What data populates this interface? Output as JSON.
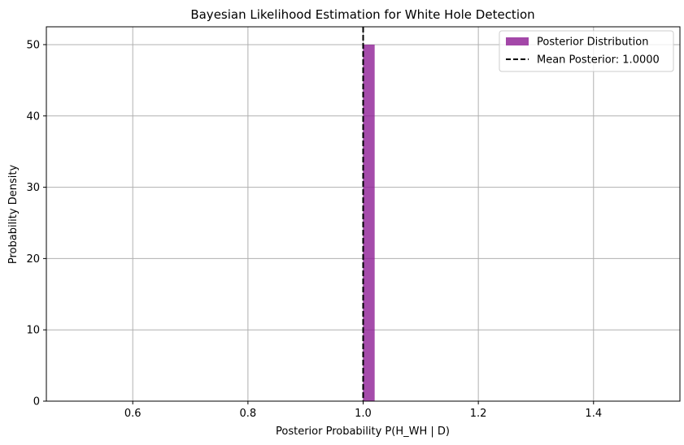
{
  "chart_data": {
    "type": "bar",
    "title": "Bayesian Likelihood Estimation for White Hole Detection",
    "xlabel": "Posterior Probability P(H_WH | D)",
    "ylabel": "Probability Density",
    "xlim": [
      0.45,
      1.55
    ],
    "ylim": [
      0,
      52.5
    ],
    "xticks": [
      0.6,
      0.8,
      1.0,
      1.2,
      1.4
    ],
    "xtick_labels": [
      "0.6",
      "0.8",
      "1.0",
      "1.2",
      "1.4"
    ],
    "yticks": [
      0,
      10,
      20,
      30,
      40,
      50
    ],
    "ytick_labels": [
      "0",
      "10",
      "20",
      "30",
      "40",
      "50"
    ],
    "grid": true,
    "legend_position": "top-right",
    "bins": [
      {
        "x_start": 1.0,
        "x_end": 1.02,
        "value": 50
      }
    ],
    "bar_color": "#8e1f96",
    "bar_opacity": 0.8,
    "mean_line": {
      "x": 1.0,
      "color": "#000000",
      "style": "dashed"
    },
    "legend": [
      {
        "label": "Posterior Distribution",
        "kind": "patch",
        "color": "#a347a8"
      },
      {
        "label": "Mean Posterior: 1.0000",
        "kind": "dashed-line",
        "color": "#000000"
      }
    ]
  }
}
